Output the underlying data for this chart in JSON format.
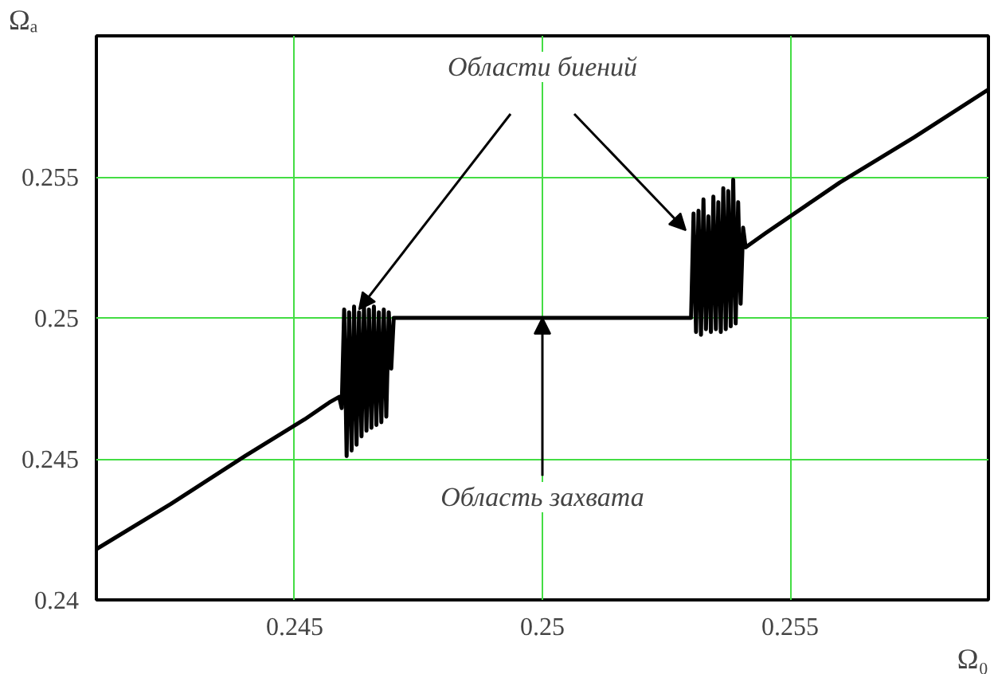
{
  "chart_data": {
    "type": "line",
    "xlabel": "Ω₀",
    "ylabel": "Ωₐ",
    "xlim": [
      0.241,
      0.259
    ],
    "ylim": [
      0.24,
      0.26
    ],
    "xticks": [
      0.245,
      0.25,
      0.255
    ],
    "yticks": [
      0.24,
      0.245,
      0.25,
      0.255
    ],
    "grid": true,
    "marker": "none",
    "line_style": "solid",
    "annotations": [
      {
        "text": "Области биений",
        "x": 0.2463,
        "y": 0.2503
      },
      {
        "text": "Область захвата",
        "x": 0.25,
        "y": 0.25
      }
    ],
    "series": [
      {
        "color": "#000000",
        "x": [
          0.241,
          0.2425,
          0.244,
          0.2452,
          0.2457,
          0.2459,
          0.24595,
          0.246,
          0.24605,
          0.2461,
          0.24615,
          0.2462,
          0.24625,
          0.2463,
          0.24635,
          0.2464,
          0.24645,
          0.2465,
          0.24655,
          0.2466,
          0.24665,
          0.2467,
          0.24675,
          0.2468,
          0.24685,
          0.2469,
          0.24695,
          0.247,
          0.25,
          0.253,
          0.25305,
          0.2531,
          0.25315,
          0.2532,
          0.25325,
          0.2533,
          0.25335,
          0.2534,
          0.25345,
          0.2535,
          0.25355,
          0.2536,
          0.25365,
          0.2537,
          0.25375,
          0.2538,
          0.25385,
          0.2539,
          0.25395,
          0.254,
          0.25405,
          0.2541,
          0.2545,
          0.256,
          0.2575,
          0.259
        ],
        "values": [
          0.2418,
          0.2434,
          0.2451,
          0.2464,
          0.247,
          0.2472,
          0.2468,
          0.2503,
          0.2451,
          0.2502,
          0.2453,
          0.2504,
          0.2455,
          0.2502,
          0.2458,
          0.2505,
          0.246,
          0.2503,
          0.2461,
          0.2504,
          0.2462,
          0.2502,
          0.2463,
          0.2503,
          0.2465,
          0.2502,
          0.2482,
          0.25,
          0.25,
          0.25,
          0.2537,
          0.2495,
          0.2538,
          0.2494,
          0.2542,
          0.2496,
          0.2536,
          0.2495,
          0.2543,
          0.2496,
          0.2541,
          0.2495,
          0.2546,
          0.2496,
          0.2545,
          0.2497,
          0.2549,
          0.2498,
          0.2541,
          0.2505,
          0.2532,
          0.2525,
          0.253,
          0.2548,
          0.2564,
          0.2581
        ]
      }
    ]
  }
}
